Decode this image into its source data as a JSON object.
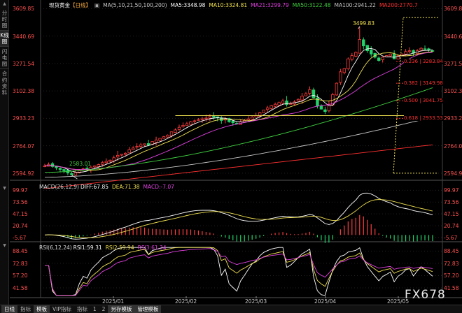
{
  "sidebar": {
    "tabs": [
      {
        "label": "分时图",
        "active": false
      },
      {
        "label": "K线图",
        "active": true
      },
      {
        "label": "闪电图",
        "active": false
      },
      {
        "label": "合约资料",
        "active": false
      }
    ]
  },
  "main_legend": {
    "name": "现货黄金",
    "period": "【日线】",
    "ma": "MA(5,10,21,50,100,200)",
    "ma5": "MA5:3348.98",
    "ma10": "MA10:3324.81",
    "ma21": "MA21:3299.79",
    "ma50": "MA50:3122.48",
    "ma100": "MA100:2941.22",
    "ma200": "MA200:2770.7"
  },
  "macd_legend": {
    "params": "MACD(26,12,9)",
    "diff": "DIFF:67.85",
    "dea": "DEA:71.38",
    "macd": "MACD:-7.07"
  },
  "rsi_legend": {
    "params": "RSI(6,12,24)",
    "rsi1": "RSI1:59.31",
    "rsi2": "RSI2:59.94",
    "rsi3": "RSI3:61.34"
  },
  "price_ticks": [
    "3609.85",
    "3440.69",
    "3271.54",
    "3102.38",
    "2933.23",
    "2764.07",
    "2594.92"
  ],
  "macd_ticks": [
    "99.97",
    "73.56",
    "47.15",
    "20.74",
    "-5.67"
  ],
  "rsi_ticks": [
    "88.45",
    "72.83",
    "57.20",
    "41.58"
  ],
  "date_ticks": [
    "2025/01",
    "2025/02",
    "2025/03",
    "2025/04",
    "2025/05"
  ],
  "labels": {
    "high": "3499.83",
    "low": "2583.01"
  },
  "fib_levels": [
    {
      "label": "0.236 | 3283.84",
      "value": 3283.84
    },
    {
      "label": "0.382 | 3149.98",
      "value": 3149.98
    },
    {
      "label": "0.500 | 3041.75",
      "value": 3041.75
    },
    {
      "label": "0.618 | 2933.53",
      "value": 2933.53
    }
  ],
  "bottombar": {
    "items": [
      {
        "label": "日线",
        "active": true
      },
      {
        "label": "指标",
        "active": false
      },
      {
        "label": "模板",
        "active": false
      },
      {
        "label": "VIP指标",
        "active": false
      },
      {
        "label": "指标",
        "active": false
      },
      {
        "label": "1",
        "active": false
      },
      {
        "label": "2",
        "active": false
      },
      {
        "label": "另存模板",
        "active": false
      },
      {
        "label": "管理模板",
        "active": false
      }
    ]
  },
  "watermark": "FX678",
  "colors": {
    "up": "#ff3c3c",
    "down": "#23d26a",
    "ma5": "#ffffff",
    "ma10": "#f0e050",
    "ma21": "#e040e0",
    "ma50": "#40d040",
    "ma100": "#c8c8c8",
    "ma200": "#ff3030",
    "fib": "#ff3030",
    "hline": "#f0e050",
    "diff": "#ffffff",
    "dea": "#f0e050",
    "rsi1": "#ffffff",
    "rsi2": "#f0e050",
    "rsi3": "#e040e0"
  },
  "chart_data": {
    "type": "candlestick",
    "title": "现货黄金【日线】",
    "x_range": [
      "2024-12",
      "2025-05"
    ],
    "ylim": [
      2594.92,
      3609.85
    ],
    "series": [
      {
        "name": "MA5",
        "last": 3348.98
      },
      {
        "name": "MA10",
        "last": 3324.81
      },
      {
        "name": "MA21",
        "last": 3299.79
      },
      {
        "name": "MA50",
        "last": 3122.48
      },
      {
        "name": "MA100",
        "last": 2941.22
      },
      {
        "name": "MA200",
        "last": 2770.7
      }
    ],
    "high": 3499.83,
    "low": 2583.01,
    "close_path": [
      2640,
      2650,
      2636,
      2628,
      2618,
      2610,
      2596,
      2585,
      2600,
      2612,
      2622,
      2620,
      2632,
      2640,
      2648,
      2660,
      2668,
      2675,
      2690,
      2705,
      2712,
      2718,
      2740,
      2750,
      2760,
      2770,
      2776,
      2768,
      2790,
      2800,
      2810,
      2820,
      2830,
      2850,
      2862,
      2878,
      2890,
      2900,
      2912,
      2918,
      2925,
      2930,
      2935,
      2944,
      2940,
      2936,
      2920,
      2930,
      2912,
      2906,
      2900,
      2912,
      2920,
      2930,
      2942,
      2950,
      2968,
      2985,
      2998,
      3012,
      3020,
      3030,
      3040,
      3018,
      3024,
      3035,
      3050,
      3070,
      3085,
      3110,
      3060,
      3010,
      2990,
      2975,
      3020,
      3080,
      3150,
      3220,
      3240,
      3300,
      3320,
      3340,
      3420,
      3380,
      3350,
      3330,
      3310,
      3290,
      3310,
      3320,
      3330,
      3300,
      3320,
      3330,
      3345,
      3350,
      3335,
      3350,
      3365,
      3360,
      3355,
      3350
    ]
  }
}
